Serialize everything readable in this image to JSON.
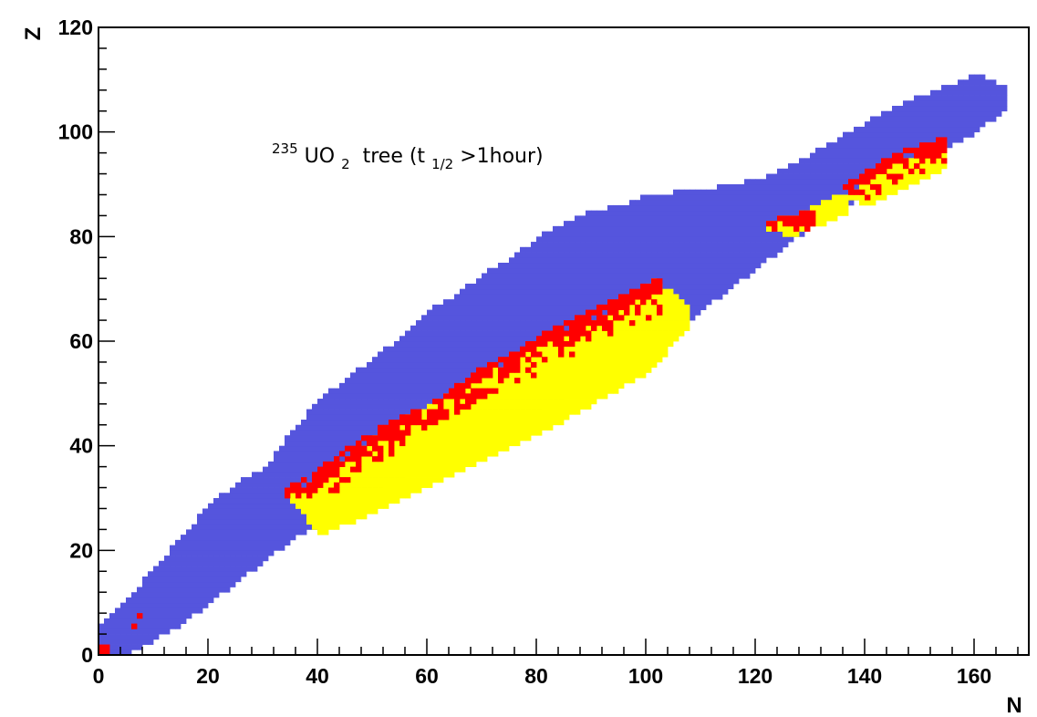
{
  "chart_data": {
    "type": "heatmap",
    "title": "",
    "xlabel": "N",
    "ylabel": "Z",
    "xlim": [
      0,
      170
    ],
    "ylim": [
      0,
      120
    ],
    "x_ticks": [
      "0",
      "20",
      "40",
      "60",
      "80",
      "100",
      "120",
      "140",
      "160"
    ],
    "y_ticks": [
      "0",
      "20",
      "40",
      "60",
      "80",
      "100",
      "120"
    ],
    "grid": false,
    "colors": {
      "background_region": "#5555dd",
      "red_region": "#ff0000",
      "yellow_region": "#ffff00"
    },
    "annotation": {
      "mass_number": "235",
      "formula_main": "UO",
      "formula_sub": "2",
      "text_a": " tree (t",
      "text_sub": "1/2",
      "text_b": ">1hour)"
    },
    "regions": {
      "blue_bounds": {
        "upper": [
          [
            0,
            5
          ],
          [
            5,
            10
          ],
          [
            10,
            16
          ],
          [
            15,
            22
          ],
          [
            20,
            28
          ],
          [
            25,
            32
          ],
          [
            30,
            35
          ],
          [
            35,
            42
          ],
          [
            40,
            48
          ],
          [
            45,
            52
          ],
          [
            50,
            56
          ],
          [
            55,
            60
          ],
          [
            60,
            65
          ],
          [
            65,
            68
          ],
          [
            70,
            72
          ],
          [
            75,
            75
          ],
          [
            80,
            79
          ],
          [
            85,
            82
          ],
          [
            90,
            84
          ],
          [
            95,
            85
          ],
          [
            100,
            87
          ],
          [
            110,
            88
          ],
          [
            120,
            90
          ],
          [
            125,
            92
          ],
          [
            130,
            95
          ],
          [
            135,
            98
          ],
          [
            140,
            101
          ],
          [
            145,
            104
          ],
          [
            150,
            106
          ],
          [
            155,
            108
          ],
          [
            160,
            110
          ],
          [
            165,
            108
          ]
        ],
        "lower": [
          [
            0,
            0
          ],
          [
            5,
            0
          ],
          [
            10,
            3
          ],
          [
            15,
            6
          ],
          [
            20,
            10
          ],
          [
            25,
            14
          ],
          [
            30,
            18
          ],
          [
            35,
            22
          ],
          [
            40,
            25
          ],
          [
            45,
            29
          ],
          [
            50,
            32
          ],
          [
            55,
            34
          ],
          [
            60,
            37
          ],
          [
            65,
            40
          ],
          [
            70,
            42
          ],
          [
            75,
            45
          ],
          [
            80,
            47
          ],
          [
            85,
            50
          ],
          [
            90,
            53
          ],
          [
            95,
            56
          ],
          [
            100,
            59
          ],
          [
            105,
            62
          ],
          [
            110,
            66
          ],
          [
            115,
            70
          ],
          [
            120,
            74
          ],
          [
            125,
            78
          ],
          [
            130,
            82
          ],
          [
            135,
            85
          ],
          [
            140,
            88
          ],
          [
            145,
            91
          ],
          [
            150,
            94
          ],
          [
            155,
            97
          ],
          [
            160,
            100
          ],
          [
            165,
            104
          ]
        ]
      },
      "yellow_clusters": [
        {
          "n_range": [
            35,
            107
          ],
          "upper": [
            [
              35,
              30
            ],
            [
              45,
              37
            ],
            [
              55,
              44
            ],
            [
              65,
              50
            ],
            [
              75,
              55
            ],
            [
              85,
              60
            ],
            [
              95,
              65
            ],
            [
              101,
              71
            ],
            [
              107,
              66
            ]
          ],
          "lower": [
            [
              35,
              29
            ],
            [
              40,
              23
            ],
            [
              50,
              27
            ],
            [
              60,
              32
            ],
            [
              70,
              37
            ],
            [
              80,
              42
            ],
            [
              90,
              48
            ],
            [
              100,
              54
            ],
            [
              107,
              62
            ]
          ]
        },
        {
          "n_range": [
            122,
            136
          ],
          "upper": [
            [
              122,
              82
            ],
            [
              129,
              84
            ],
            [
              134,
              87
            ],
            [
              136,
              86
            ]
          ],
          "lower": [
            [
              122,
              81
            ],
            [
              126,
              80
            ],
            [
              131,
              82
            ],
            [
              136,
              84
            ]
          ]
        },
        {
          "n_range": [
            136,
            154
          ],
          "upper": [
            [
              136,
              87
            ],
            [
              144,
              92
            ],
            [
              150,
              95
            ],
            [
              154,
              97
            ]
          ],
          "lower": [
            [
              136,
              87
            ],
            [
              141,
              86
            ],
            [
              147,
              89
            ],
            [
              154,
              93
            ]
          ]
        }
      ],
      "red_clusters": [
        {
          "n_range": [
            34,
            102
          ],
          "upper": [
            [
              34,
              31
            ],
            [
              38,
              33
            ],
            [
              44,
              38
            ],
            [
              50,
              42
            ],
            [
              56,
              45
            ],
            [
              62,
              48
            ],
            [
              68,
              53
            ],
            [
              74,
              56
            ],
            [
              80,
              60
            ],
            [
              86,
              63
            ],
            [
              92,
              66
            ],
            [
              98,
              69
            ],
            [
              102,
              71
            ]
          ],
          "lower": [
            [
              34,
              29
            ],
            [
              38,
              28
            ],
            [
              44,
              32
            ],
            [
              50,
              36
            ],
            [
              56,
              40
            ],
            [
              62,
              44
            ],
            [
              68,
              47
            ],
            [
              74,
              50
            ],
            [
              80,
              54
            ],
            [
              86,
              57
            ],
            [
              92,
              60
            ],
            [
              98,
              63
            ],
            [
              102,
              64
            ]
          ]
        },
        {
          "n_range": [
            122,
            130
          ],
          "upper": [
            [
              122,
              82
            ],
            [
              126,
              83
            ],
            [
              130,
              84
            ]
          ],
          "lower": [
            [
              122,
              81
            ],
            [
              126,
              80
            ],
            [
              130,
              81
            ]
          ]
        },
        {
          "n_range": [
            136,
            154
          ],
          "upper": [
            [
              136,
              89
            ],
            [
              142,
              93
            ],
            [
              148,
              96
            ],
            [
              154,
              98
            ]
          ],
          "lower": [
            [
              136,
              86
            ],
            [
              142,
              88
            ],
            [
              148,
              91
            ],
            [
              154,
              94
            ]
          ]
        }
      ],
      "small_red_points": [
        [
          0,
          0
        ],
        [
          1,
          0
        ],
        [
          0,
          1
        ],
        [
          1,
          1
        ],
        [
          6,
          5
        ],
        [
          7,
          7
        ]
      ]
    }
  }
}
